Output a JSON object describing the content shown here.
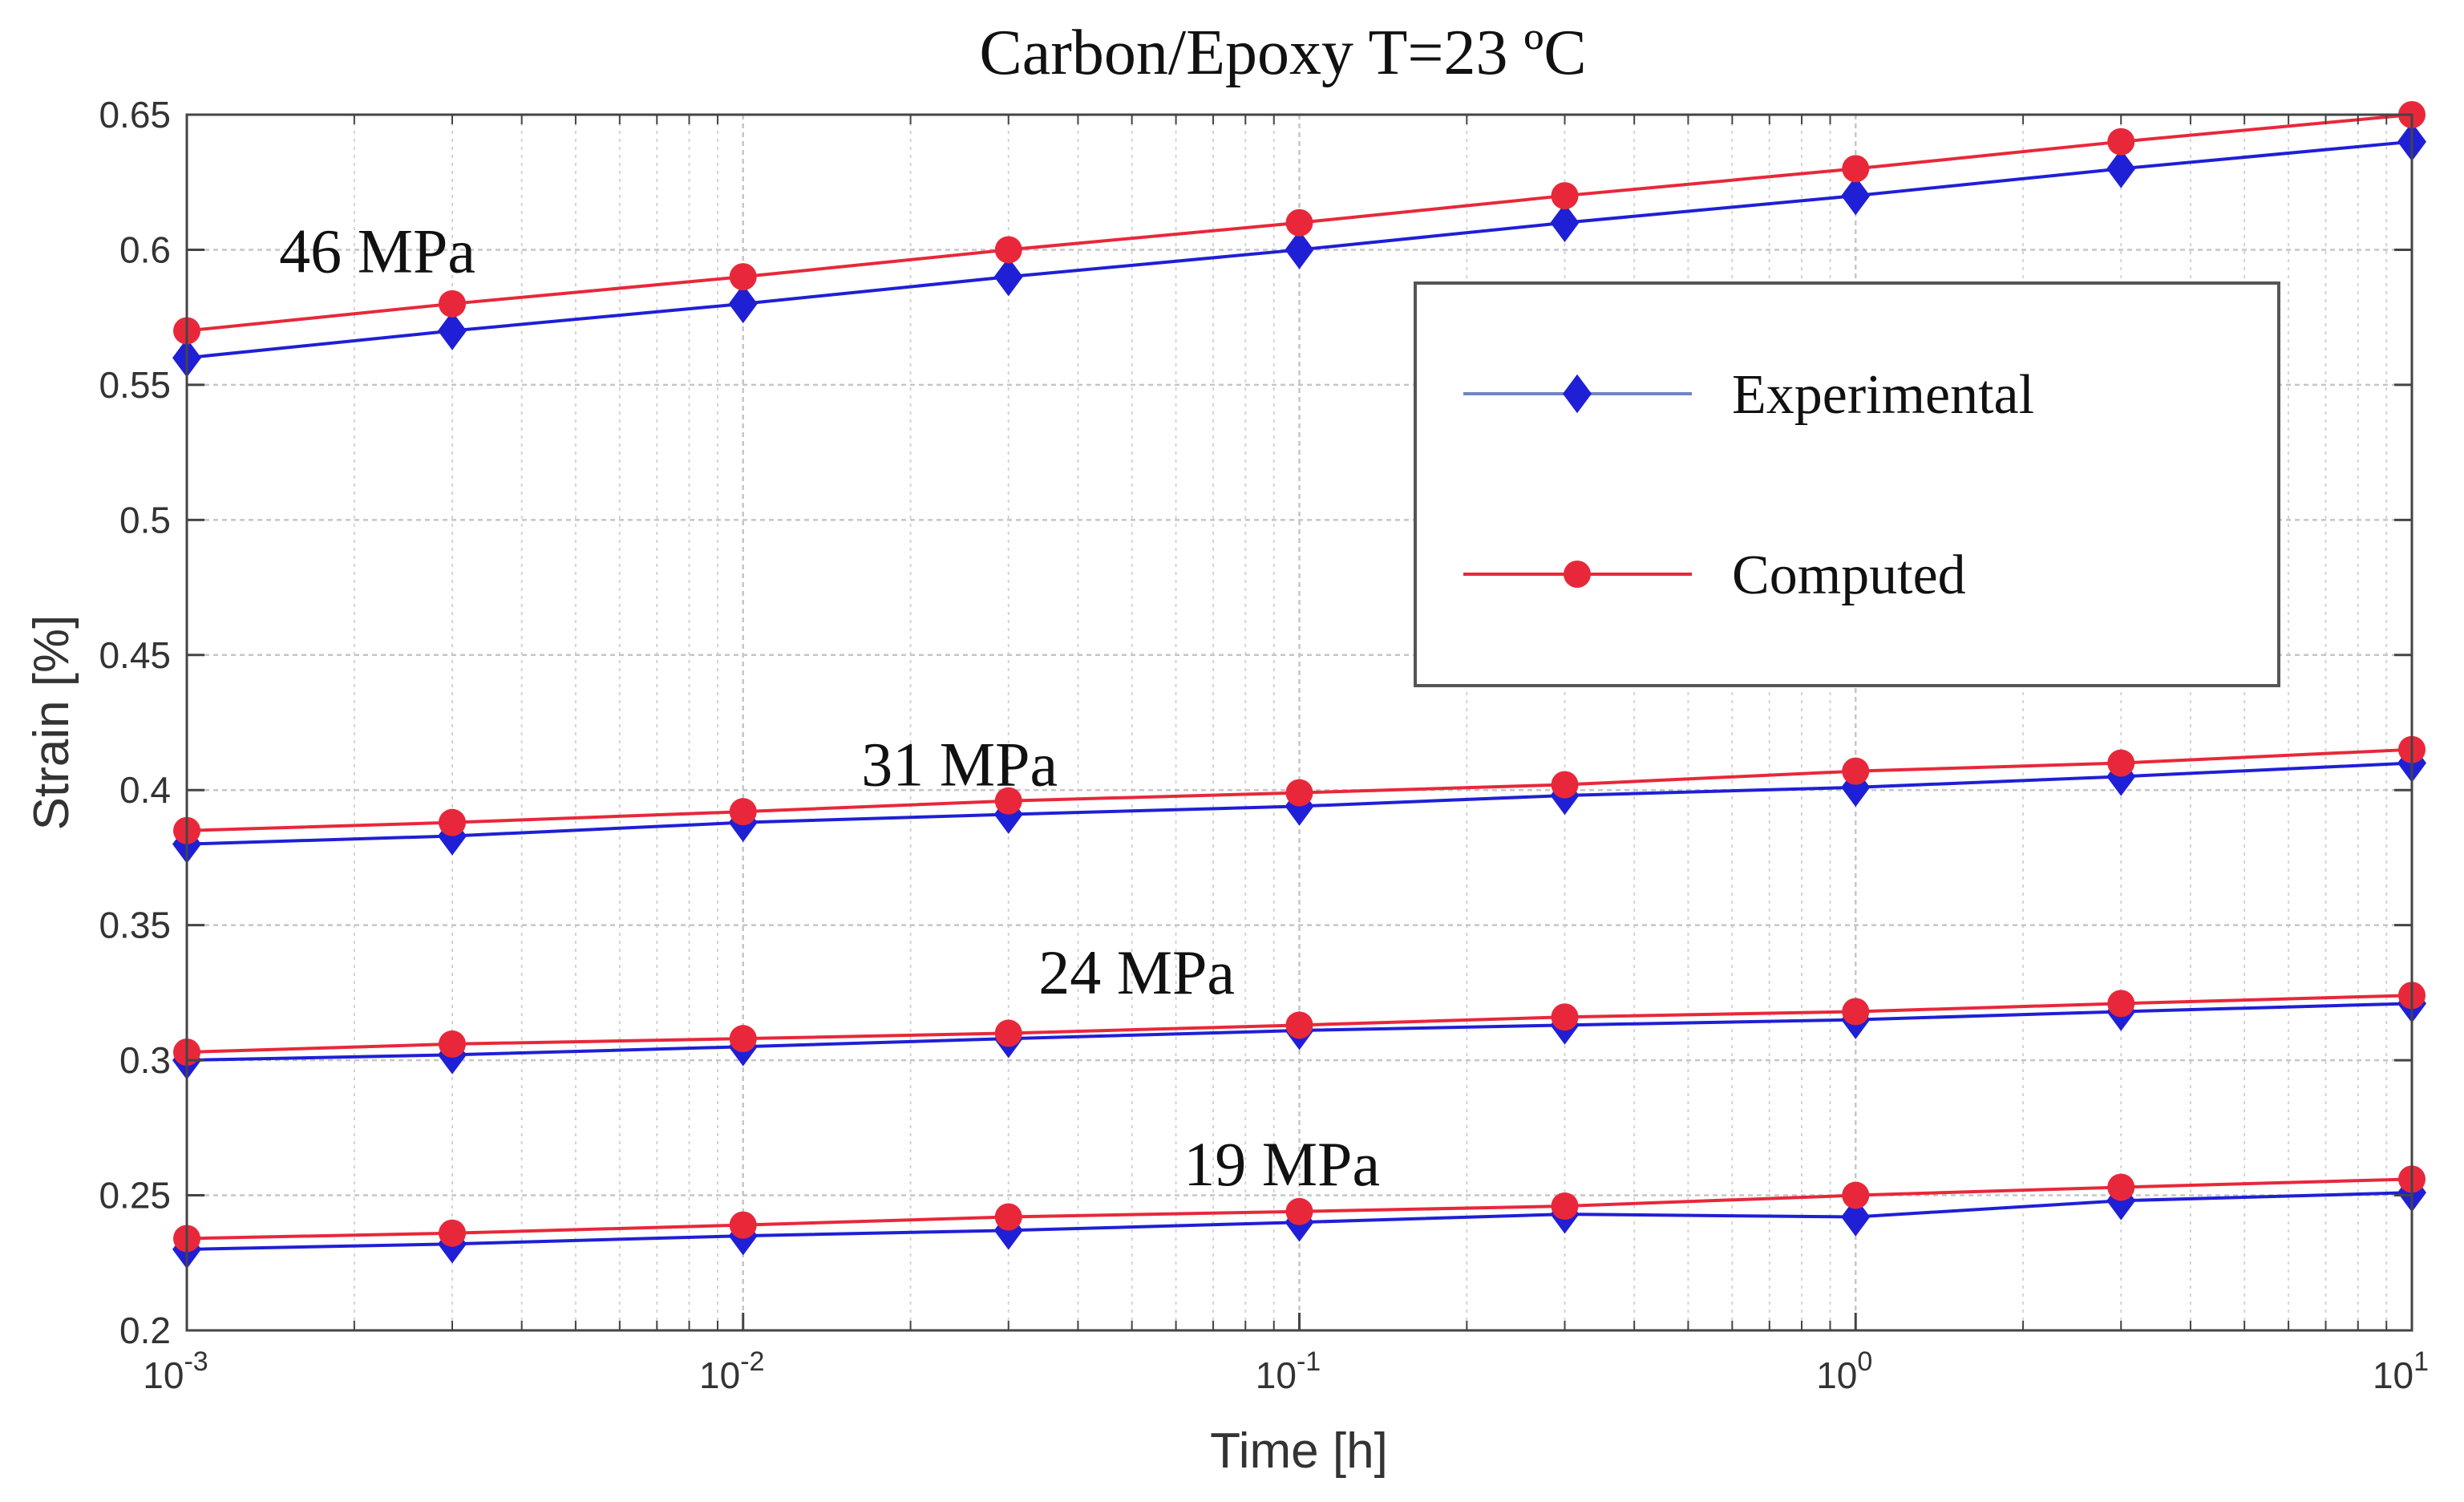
{
  "chart_data": {
    "type": "line",
    "title": "Carbon/Epoxy T=23 ºC",
    "xlabel": "Time [h]",
    "ylabel": "Strain [%]",
    "xscale": "log",
    "xlim": [
      0.001,
      10
    ],
    "ylim": [
      0.2,
      0.65
    ],
    "grid": true,
    "x": [
      0.001,
      0.003,
      0.01,
      0.03,
      0.1,
      0.3,
      1,
      3,
      10
    ],
    "x_ticks": [
      {
        "base": "10",
        "exp": "-3"
      },
      {
        "base": "10",
        "exp": "-2"
      },
      {
        "base": "10",
        "exp": "-1"
      },
      {
        "base": "10",
        "exp": "0"
      },
      {
        "base": "10",
        "exp": "1"
      }
    ],
    "y_ticks": [
      "0.2",
      "0.25",
      "0.3",
      "0.35",
      "0.4",
      "0.45",
      "0.5",
      "0.55",
      "0.6",
      "0.65"
    ],
    "legend": {
      "position": "upper-right",
      "entries": [
        {
          "name": "Experimental",
          "color": "#1f1fd6",
          "marker": "diamond"
        },
        {
          "name": "Computed",
          "color": "#e8283a",
          "marker": "circle"
        }
      ]
    },
    "groups": [
      {
        "label": "46 MPa",
        "experimental": [
          0.56,
          0.57,
          0.58,
          0.59,
          0.6,
          0.61,
          0.62,
          0.63,
          0.64
        ],
        "computed": [
          0.57,
          0.58,
          0.59,
          0.6,
          0.61,
          0.62,
          0.63,
          0.64,
          0.65
        ]
      },
      {
        "label": "31 MPa",
        "experimental": [
          0.38,
          0.383,
          0.388,
          0.391,
          0.394,
          0.398,
          0.401,
          0.405,
          0.41
        ],
        "computed": [
          0.385,
          0.388,
          0.392,
          0.396,
          0.399,
          0.402,
          0.407,
          0.41,
          0.415
        ]
      },
      {
        "label": "24 MPa",
        "experimental": [
          0.3,
          0.302,
          0.305,
          0.308,
          0.311,
          0.313,
          0.315,
          0.318,
          0.321
        ],
        "computed": [
          0.303,
          0.306,
          0.308,
          0.31,
          0.313,
          0.316,
          0.318,
          0.321,
          0.324
        ]
      },
      {
        "label": "19 MPa",
        "experimental": [
          0.23,
          0.232,
          0.235,
          0.237,
          0.24,
          0.243,
          0.242,
          0.248,
          0.251
        ],
        "computed": [
          0.234,
          0.236,
          0.239,
          0.242,
          0.244,
          0.246,
          0.25,
          0.253,
          0.256
        ]
      }
    ]
  }
}
